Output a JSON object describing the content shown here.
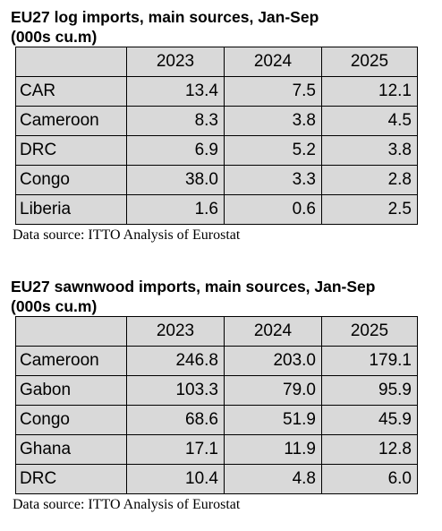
{
  "tables": [
    {
      "title_line1": "EU27 log imports, main sources, Jan-Sep",
      "title_line2": "(000s cu.m)",
      "headers": [
        "",
        "2023",
        "2024",
        "2025"
      ],
      "rows": [
        {
          "name": "CAR",
          "values": [
            "13.4",
            "7.5",
            "12.1"
          ]
        },
        {
          "name": "Cameroon",
          "values": [
            "8.3",
            "3.8",
            "4.5"
          ]
        },
        {
          "name": "DRC",
          "values": [
            "6.9",
            "5.2",
            "3.8"
          ]
        },
        {
          "name": "Congo",
          "values": [
            "38.0",
            "3.3",
            "2.8"
          ]
        },
        {
          "name": "Liberia",
          "values": [
            "1.6",
            "0.6",
            "2.5"
          ]
        }
      ],
      "source": "Data source: ITTO Analysis of Eurostat"
    },
    {
      "title_line1": "EU27 sawnwood imports, main sources, Jan-Sep",
      "title_line2": "(000s cu.m)",
      "headers": [
        "",
        "2023",
        "2024",
        "2025"
      ],
      "rows": [
        {
          "name": "Cameroon",
          "values": [
            "246.8",
            "203.0",
            "179.1"
          ]
        },
        {
          "name": "Gabon",
          "values": [
            "103.3",
            "79.0",
            "95.9"
          ]
        },
        {
          "name": "Congo",
          "values": [
            "68.6",
            "51.9",
            "45.9"
          ]
        },
        {
          "name": "Ghana",
          "values": [
            "17.1",
            "11.9",
            "12.8"
          ]
        },
        {
          "name": "DRC",
          "values": [
            "10.4",
            "4.8",
            "6.0"
          ]
        }
      ],
      "source": "Data source: ITTO Analysis of Eurostat"
    }
  ]
}
